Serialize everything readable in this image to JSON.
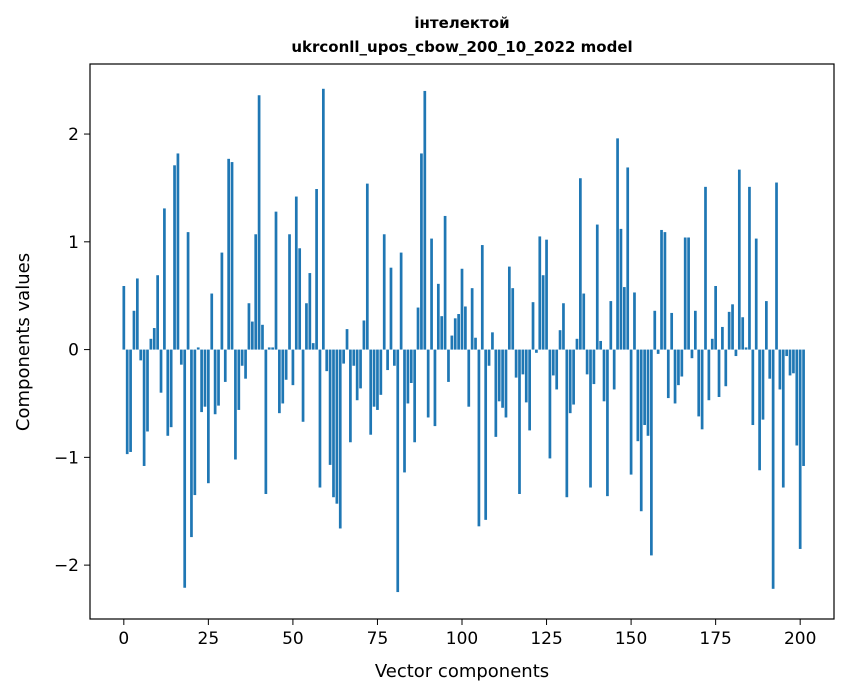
{
  "chart_data": {
    "type": "bar",
    "title": "інтелектой",
    "subtitle": "ukrconll_upos_cbow_200_10_2022 model",
    "xlabel": "Vector components",
    "ylabel": "Components values",
    "xlim": [
      -10,
      210
    ],
    "ylim": [
      -2.5,
      2.65
    ],
    "xticks": [
      0,
      25,
      50,
      75,
      100,
      125,
      150,
      175,
      200
    ],
    "yticks": [
      -2,
      -1,
      0,
      1,
      2
    ],
    "ytick_labels": [
      "−2",
      "−1",
      "0",
      "1",
      "2"
    ],
    "grid": false,
    "bar_color": "#1f77b4",
    "values": [
      0.59,
      -0.97,
      -0.95,
      0.36,
      0.66,
      -0.1,
      -1.08,
      -0.76,
      0.1,
      0.2,
      0.69,
      -0.4,
      1.31,
      -0.8,
      -0.72,
      1.71,
      1.82,
      -0.14,
      -2.21,
      1.09,
      -1.74,
      -1.35,
      0.02,
      -0.58,
      -0.53,
      -1.24,
      0.52,
      -0.6,
      -0.52,
      0.9,
      -0.3,
      1.77,
      1.74,
      -1.02,
      -0.56,
      -0.15,
      -0.27,
      0.43,
      0.26,
      1.07,
      2.36,
      0.23,
      -1.34,
      0.02,
      0.02,
      1.28,
      -0.59,
      -0.5,
      -0.28,
      1.07,
      -0.33,
      1.42,
      0.94,
      -0.67,
      0.43,
      0.71,
      0.06,
      1.49,
      -1.28,
      2.42,
      -0.2,
      -1.07,
      -1.37,
      -1.43,
      -1.66,
      -0.13,
      0.19,
      -0.86,
      -0.15,
      -0.47,
      -0.36,
      0.27,
      1.54,
      -0.79,
      -0.53,
      -0.56,
      -0.42,
      1.07,
      -0.19,
      0.76,
      -0.15,
      -2.25,
      0.9,
      -1.14,
      -0.5,
      -0.31,
      -0.86,
      0.39,
      1.82,
      2.4,
      -0.63,
      1.03,
      -0.71,
      0.61,
      0.31,
      1.24,
      -0.3,
      0.13,
      0.29,
      0.33,
      0.75,
      0.4,
      -0.53,
      0.57,
      0.11,
      -1.64,
      0.97,
      -1.58,
      -0.15,
      0.16,
      -0.81,
      -0.48,
      -0.54,
      -0.63,
      0.77,
      0.57,
      -0.26,
      -1.34,
      -0.23,
      -0.49,
      -0.75,
      0.44,
      -0.03,
      1.05,
      0.69,
      1.02,
      -1.01,
      -0.24,
      -0.37,
      0.18,
      0.43,
      -1.37,
      -0.59,
      -0.51,
      0.1,
      1.59,
      0.52,
      -0.23,
      -1.28,
      -0.32,
      1.16,
      0.08,
      -0.48,
      -1.36,
      0.45,
      -0.37,
      1.96,
      1.12,
      0.58,
      1.69,
      -1.16,
      0.53,
      -0.85,
      -1.5,
      -0.7,
      -0.8,
      -1.91,
      0.36,
      -0.04,
      1.11,
      1.09,
      -0.45,
      0.34,
      -0.5,
      -0.33,
      -0.25,
      1.04,
      1.04,
      -0.08,
      0.36,
      -0.62,
      -0.74,
      1.51,
      -0.47,
      0.1,
      0.59,
      -0.44,
      0.21,
      -0.34,
      0.35,
      0.42,
      -0.06,
      1.67,
      0.3,
      0.02,
      1.51,
      -0.7,
      1.03,
      -1.12,
      -0.65,
      0.45,
      -0.27,
      -2.22,
      1.55,
      -0.37,
      -1.28,
      -0.06,
      -0.24,
      -0.22,
      -0.89,
      -1.85,
      -1.08
    ]
  }
}
